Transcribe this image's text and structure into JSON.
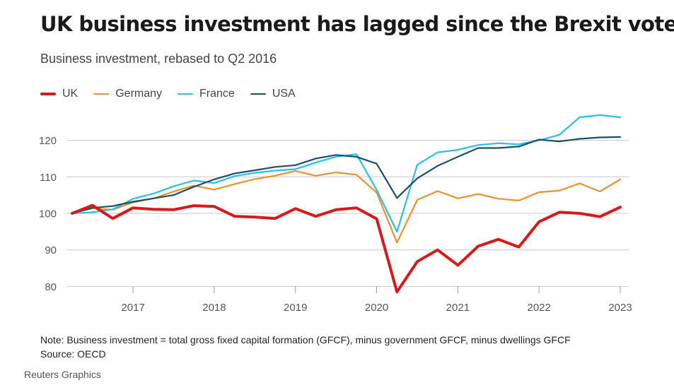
{
  "title": "UK business investment has lagged since the Brexit vote",
  "subtitle": "Business investment, rebased to Q2 2016",
  "note": "Note: Business investment = total gross fixed capital formation (GFCF), minus government GFCF, minus dwellings GFCF",
  "source": "Source: OECD",
  "credit": "Reuters Graphics",
  "colors": {
    "UK": "#d7191c",
    "Germany": "#e8922e",
    "France": "#29bfe6",
    "USA": "#1b4f6b",
    "grid": "#c8c8c8",
    "axis_text": "#555555"
  },
  "chart_data": {
    "type": "line",
    "title": "UK business investment has lagged since the Brexit vote",
    "subtitle": "Business investment, rebased to Q2 2016",
    "x_start": "2016 Q2",
    "x_end": "2023 Q1",
    "x_ticks": [
      "2017",
      "2018",
      "2019",
      "2020",
      "2021",
      "2022",
      "2023"
    ],
    "y_ticks": [
      80,
      90,
      100,
      110,
      120
    ],
    "ylim": [
      78,
      128
    ],
    "grid": true,
    "legend_position": "top-left",
    "x": [
      "2016 Q2",
      "2016 Q3",
      "2016 Q4",
      "2017 Q1",
      "2017 Q2",
      "2017 Q3",
      "2017 Q4",
      "2018 Q1",
      "2018 Q2",
      "2018 Q3",
      "2018 Q4",
      "2019 Q1",
      "2019 Q2",
      "2019 Q3",
      "2019 Q4",
      "2020 Q1",
      "2020 Q2",
      "2020 Q3",
      "2020 Q4",
      "2021 Q1",
      "2021 Q2",
      "2021 Q3",
      "2021 Q4",
      "2022 Q1",
      "2022 Q2",
      "2022 Q3",
      "2022 Q4",
      "2023 Q1"
    ],
    "series": [
      {
        "name": "UK",
        "values": [
          100,
          102.2,
          98.6,
          101.5,
          101.1,
          101.0,
          102.1,
          101.9,
          99.2,
          99.0,
          98.6,
          101.3,
          99.2,
          101.0,
          101.5,
          98.5,
          78.5,
          86.8,
          90.0,
          85.8,
          91.0,
          92.9,
          90.8,
          97.7,
          100.3,
          100.0,
          99.1,
          101.7
        ]
      },
      {
        "name": "Germany",
        "values": [
          100,
          101.4,
          101.0,
          103.0,
          104.1,
          106.0,
          107.6,
          106.5,
          108.0,
          109.4,
          110.3,
          111.6,
          110.3,
          111.2,
          110.6,
          105.7,
          92.0,
          103.7,
          106.1,
          104.1,
          105.3,
          104.0,
          103.5,
          105.8,
          106.2,
          108.2,
          106.0,
          109.3
        ]
      },
      {
        "name": "France",
        "values": [
          100,
          100.3,
          101.1,
          104.0,
          105.4,
          107.4,
          109.0,
          108.3,
          110.2,
          111.1,
          111.7,
          112.1,
          113.9,
          115.5,
          116.2,
          106.4,
          95.0,
          113.3,
          116.7,
          117.4,
          118.7,
          119.2,
          118.9,
          120.0,
          121.5,
          126.3,
          126.9,
          126.3
        ]
      },
      {
        "name": "USA",
        "values": [
          100,
          101.5,
          102.0,
          103.2,
          104.1,
          105.0,
          107.3,
          109.3,
          110.9,
          111.8,
          112.7,
          113.2,
          115.0,
          116.0,
          115.5,
          113.6,
          104.2,
          109.6,
          113.0,
          115.5,
          117.9,
          117.9,
          118.3,
          120.2,
          119.7,
          120.4,
          120.8,
          120.9
        ]
      }
    ]
  }
}
